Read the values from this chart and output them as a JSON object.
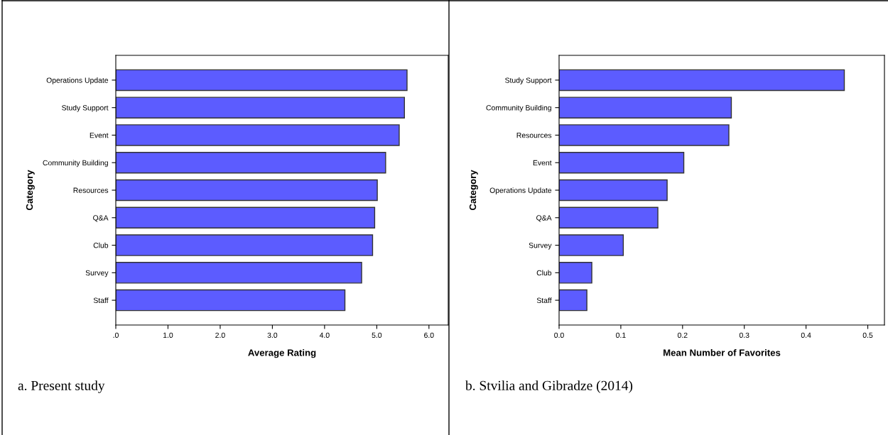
{
  "chart_data": [
    {
      "type": "bar",
      "orientation": "horizontal",
      "categories": [
        "Operations Update",
        "Study Support",
        "Event",
        "Community Building",
        "Resources",
        "Q&A",
        "Club",
        "Survey",
        "Staff"
      ],
      "values": [
        5.58,
        5.53,
        5.43,
        5.17,
        5.01,
        4.96,
        4.92,
        4.71,
        4.39
      ],
      "color": "#5c5cff",
      "xlim": [
        0,
        6.37
      ],
      "xticks": [
        {
          "value": 0,
          "label": ".0"
        },
        {
          "value": 1,
          "label": "1.0"
        },
        {
          "value": 2,
          "label": "2.0"
        },
        {
          "value": 3,
          "label": "3.0"
        },
        {
          "value": 4,
          "label": "4.0"
        },
        {
          "value": 5,
          "label": "5.0"
        },
        {
          "value": 6,
          "label": "6.0"
        }
      ],
      "xlabel": "Average Rating",
      "ylabel": "Category",
      "grid": false,
      "legend": false,
      "annotations": [
        "a. Present study"
      ]
    },
    {
      "type": "bar",
      "orientation": "horizontal",
      "categories": [
        "Study Support",
        "Community Building",
        "Resources",
        "Event",
        "Operations Update",
        "Q&A",
        "Survey",
        "Club",
        "Staff"
      ],
      "values": [
        0.462,
        0.279,
        0.275,
        0.202,
        0.175,
        0.16,
        0.104,
        0.053,
        0.045
      ],
      "color": "#5c5cff",
      "xlim": [
        0,
        0.527
      ],
      "xticks": [
        {
          "value": 0,
          "label": "0.0"
        },
        {
          "value": 0.1,
          "label": "0.1"
        },
        {
          "value": 0.2,
          "label": "0.2"
        },
        {
          "value": 0.3,
          "label": "0.3"
        },
        {
          "value": 0.4,
          "label": "0.4"
        },
        {
          "value": 0.5,
          "label": "0.5"
        }
      ],
      "xlabel": "Mean Number of Favorites",
      "ylabel": "Category",
      "grid": false,
      "legend": false,
      "annotations": [
        "b. Stvilia and Gibradze (2014)"
      ]
    }
  ]
}
